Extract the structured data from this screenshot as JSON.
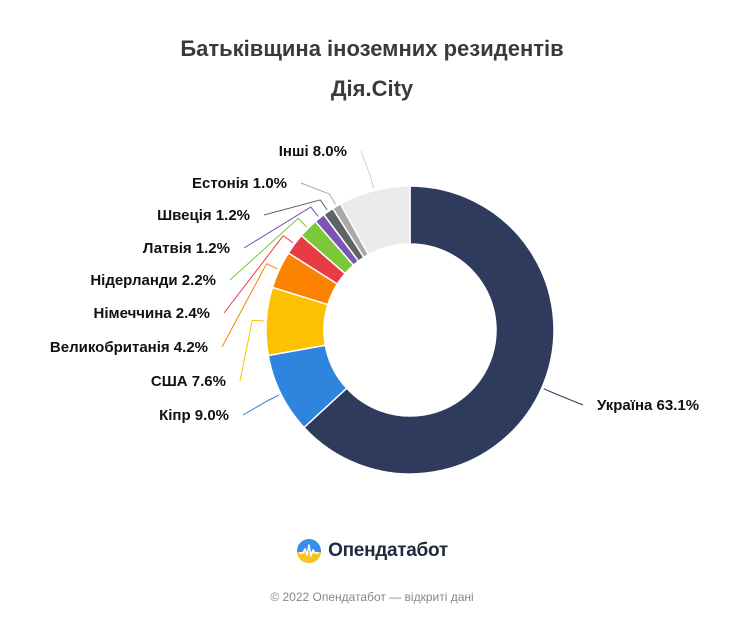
{
  "chart_data": {
    "type": "pie",
    "donut": true,
    "title": "Батьківщина іноземних резидентів",
    "subtitle": "Дія.City",
    "unit": "%",
    "slices": [
      {
        "name": "Україна",
        "label": "Україна 63.1%",
        "value": 63.1,
        "color": "#2e3b5c"
      },
      {
        "name": "Кіпр",
        "label": "Кіпр 9.0%",
        "value": 9.0,
        "color": "#2f84de"
      },
      {
        "name": "США",
        "label": "США 7.6%",
        "value": 7.6,
        "color": "#fcc100"
      },
      {
        "name": "Великобританія",
        "label": "Великобританія 4.2%",
        "value": 4.2,
        "color": "#fc8300"
      },
      {
        "name": "Німеччина",
        "label": "Німеччина 2.4%",
        "value": 2.4,
        "color": "#e83c44"
      },
      {
        "name": "Нідерланди",
        "label": "Нідерланди 2.2%",
        "value": 2.2,
        "color": "#7bc93a"
      },
      {
        "name": "Латвія",
        "label": "Латвія 1.2%",
        "value": 1.2,
        "color": "#7a55b4"
      },
      {
        "name": "Швеція",
        "label": "Швеція 1.2%",
        "value": 1.2,
        "color": "#5f6368"
      },
      {
        "name": "Естонія",
        "label": "Естонія 1.0%",
        "value": 1.0,
        "color": "#a9a9a9"
      },
      {
        "name": "Інші",
        "label": "Інші 8.0%",
        "value": 8.0,
        "color": "#ebebeb"
      }
    ]
  },
  "brand": {
    "name": "Опендатабот",
    "icon": "opendatabot-logo-icon"
  },
  "footer": "© 2022 Опендатабот — відкриті дані"
}
